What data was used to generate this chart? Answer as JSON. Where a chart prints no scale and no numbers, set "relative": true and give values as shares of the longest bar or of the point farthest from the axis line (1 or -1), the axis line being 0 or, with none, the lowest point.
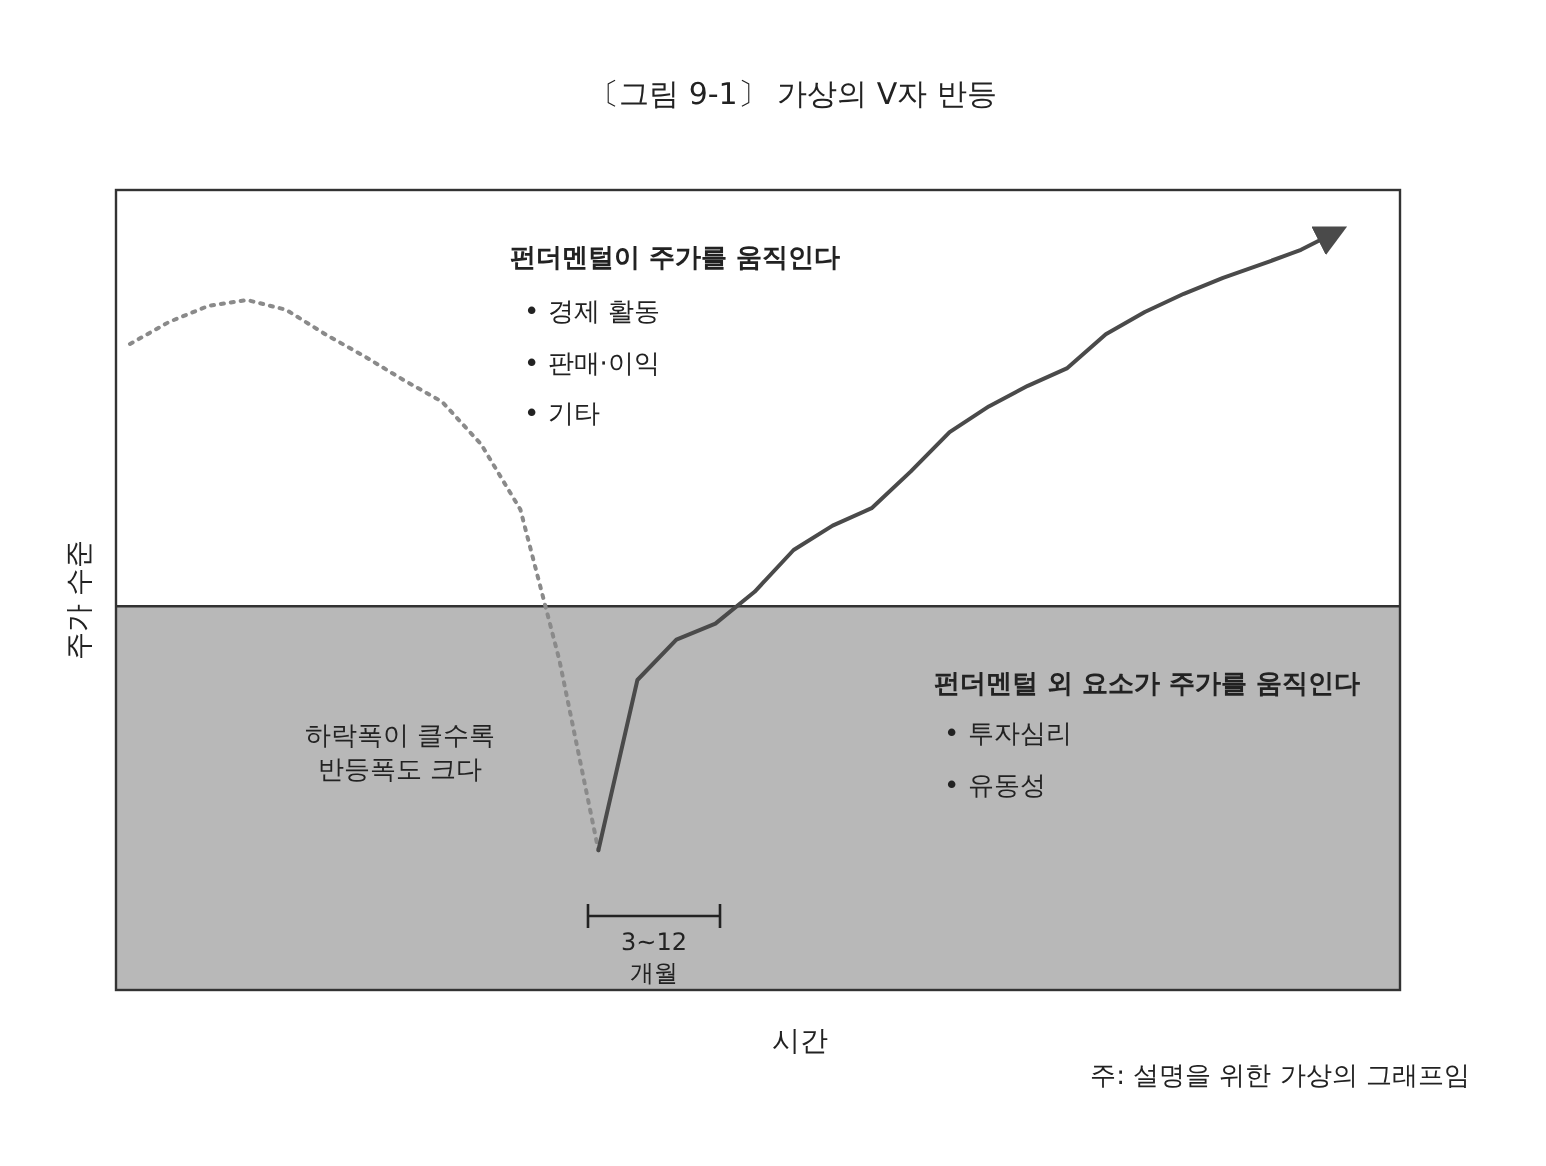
{
  "chart_data": {
    "type": "line",
    "title": "〔그림 9-1〕 가상의 V자 반등",
    "xlabel": "시간",
    "ylabel": "주가 수준",
    "relative": true,
    "categories": [
      null,
      null,
      null,
      null,
      null,
      null,
      null,
      null,
      null,
      null,
      null,
      null,
      null,
      null,
      null,
      null,
      null,
      null,
      null,
      null,
      null,
      null,
      null,
      null,
      null,
      null,
      null,
      null,
      null,
      null,
      null,
      null
    ],
    "series": [
      {
        "color": "#8a8a8a",
        "line_style": "dotted",
        "values": [
          0.85,
          0.879,
          0.9,
          0.908,
          0.895,
          0.863,
          0.834,
          0.803,
          0.774,
          0.718,
          0.632,
          0.434,
          0.184,
          null,
          null,
          null,
          null,
          null,
          null,
          null,
          null,
          null,
          null,
          null,
          null,
          null,
          null,
          null,
          null,
          null,
          null,
          null
        ]
      },
      {
        "color": "#4a4a4a",
        "line_style": "solid",
        "values": [
          null,
          null,
          null,
          null,
          null,
          null,
          null,
          null,
          null,
          null,
          null,
          null,
          0.184,
          0.408,
          0.461,
          0.482,
          0.524,
          0.579,
          0.611,
          0.634,
          0.682,
          0.734,
          0.768,
          0.795,
          0.818,
          0.863,
          0.892,
          0.916,
          0.937,
          0.955,
          0.974,
          1
        ]
      }
    ],
    "bands": [
      {
        "axis": "y",
        "from": 0,
        "to": 0.505,
        "color": "#b8b8b8"
      }
    ],
    "ref_lines": [
      {
        "axis": "y",
        "value": 0.505,
        "color": "#333333"
      }
    ],
    "annotations": [
      "펀더멘털이 주가를 움직인다",
      "• 경제 활동",
      "• 판매·이익",
      "• 기타",
      "펀더멘털 외 요소가 주가를 움직인다",
      "• 투자심리",
      "• 유동성",
      "하락폭이 클수록\n반등폭도 크다",
      "3~12\n개월",
      "주: 설명을 위한 가상의 그래프임"
    ]
  }
}
